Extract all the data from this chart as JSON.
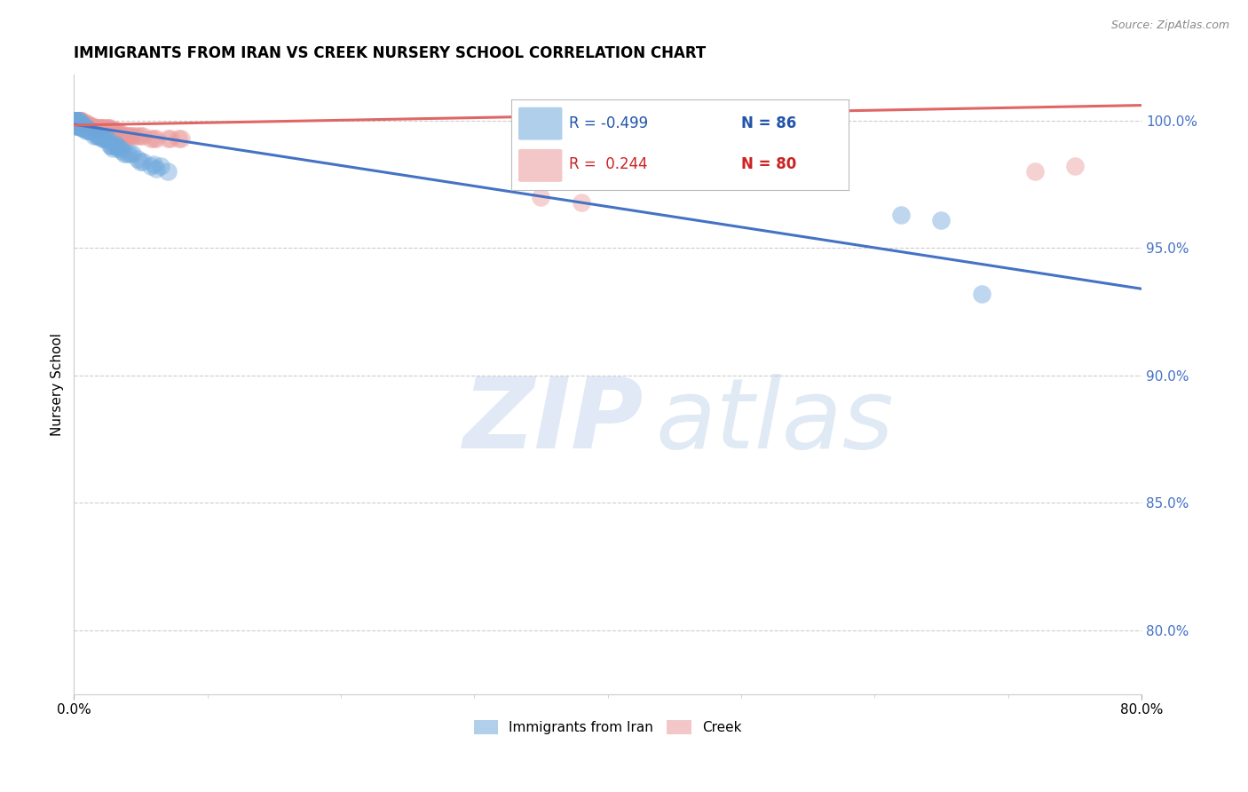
{
  "title": "IMMIGRANTS FROM IRAN VS CREEK NURSERY SCHOOL CORRELATION CHART",
  "source": "Source: ZipAtlas.com",
  "ylabel": "Nursery School",
  "y_ticks": [
    0.8,
    0.85,
    0.9,
    0.95,
    1.0
  ],
  "y_tick_labels": [
    "80.0%",
    "85.0%",
    "90.0%",
    "95.0%",
    "100.0%"
  ],
  "x_range": [
    0.0,
    0.8
  ],
  "y_range": [
    0.775,
    1.018
  ],
  "blue_R": -0.499,
  "blue_N": 86,
  "pink_R": 0.244,
  "pink_N": 80,
  "blue_color": "#6fa8dc",
  "pink_color": "#ea9999",
  "blue_line_color": "#4472c4",
  "pink_line_color": "#e06666",
  "legend_label_blue": "Immigrants from Iran",
  "legend_label_pink": "Creek",
  "blue_scatter_x": [
    0.001,
    0.002,
    0.003,
    0.001,
    0.004,
    0.005,
    0.002,
    0.003,
    0.001,
    0.002,
    0.001,
    0.004,
    0.003,
    0.005,
    0.001,
    0.002,
    0.004,
    0.003,
    0.001,
    0.002,
    0.003,
    0.004,
    0.005,
    0.001,
    0.002,
    0.003,
    0.004,
    0.006,
    0.005,
    0.003,
    0.004,
    0.002,
    0.001,
    0.008,
    0.009,
    0.007,
    0.01,
    0.005,
    0.003,
    0.004,
    0.006,
    0.002,
    0.012,
    0.01,
    0.008,
    0.007,
    0.009,
    0.006,
    0.011,
    0.015,
    0.018,
    0.016,
    0.017,
    0.019,
    0.021,
    0.02,
    0.025,
    0.022,
    0.023,
    0.024,
    0.03,
    0.028,
    0.032,
    0.027,
    0.031,
    0.035,
    0.033,
    0.029,
    0.036,
    0.04,
    0.038,
    0.042,
    0.044,
    0.05,
    0.048,
    0.052,
    0.06,
    0.058,
    0.062,
    0.065,
    0.07,
    0.62,
    0.65,
    0.68
  ],
  "blue_scatter_y": [
    0.999,
    0.999,
    0.999,
    1.0,
    0.999,
    0.999,
    1.0,
    0.999,
    1.0,
    0.999,
    1.0,
    0.999,
    1.0,
    0.999,
    1.0,
    0.999,
    0.999,
    1.0,
    1.0,
    0.999,
    0.999,
    0.999,
    0.999,
    1.0,
    1.0,
    1.0,
    0.999,
    0.999,
    0.999,
    0.998,
    0.998,
    0.998,
    0.999,
    0.997,
    0.997,
    0.997,
    0.997,
    0.998,
    0.998,
    0.998,
    0.997,
    0.998,
    0.996,
    0.996,
    0.997,
    0.997,
    0.996,
    0.997,
    0.996,
    0.994,
    0.994,
    0.995,
    0.994,
    0.994,
    0.993,
    0.994,
    0.993,
    0.993,
    0.993,
    0.993,
    0.99,
    0.99,
    0.99,
    0.99,
    0.991,
    0.989,
    0.989,
    0.989,
    0.988,
    0.987,
    0.987,
    0.987,
    0.987,
    0.984,
    0.985,
    0.984,
    0.983,
    0.982,
    0.981,
    0.982,
    0.98,
    0.963,
    0.961,
    0.932
  ],
  "pink_scatter_x": [
    0.001,
    0.003,
    0.002,
    0.004,
    0.001,
    0.005,
    0.002,
    0.003,
    0.004,
    0.002,
    0.001,
    0.003,
    0.005,
    0.004,
    0.002,
    0.003,
    0.001,
    0.004,
    0.006,
    0.005,
    0.003,
    0.004,
    0.008,
    0.007,
    0.009,
    0.01,
    0.006,
    0.005,
    0.008,
    0.007,
    0.012,
    0.014,
    0.013,
    0.011,
    0.01,
    0.015,
    0.016,
    0.017,
    0.015,
    0.02,
    0.022,
    0.018,
    0.025,
    0.019,
    0.021,
    0.024,
    0.02,
    0.03,
    0.028,
    0.032,
    0.027,
    0.029,
    0.031,
    0.026,
    0.035,
    0.034,
    0.04,
    0.042,
    0.038,
    0.045,
    0.037,
    0.043,
    0.041,
    0.05,
    0.052,
    0.048,
    0.06,
    0.058,
    0.062,
    0.07,
    0.072,
    0.078,
    0.08,
    0.35,
    0.38,
    0.72,
    0.75
  ],
  "pink_scatter_y": [
    1.0,
    1.0,
    1.0,
    1.0,
    1.0,
    1.0,
    1.0,
    1.0,
    1.0,
    1.0,
    1.0,
    1.0,
    1.0,
    1.0,
    1.0,
    1.0,
    1.0,
    1.0,
    1.0,
    1.0,
    1.0,
    1.0,
    0.999,
    0.999,
    0.999,
    0.999,
    0.999,
    0.999,
    0.999,
    0.999,
    0.998,
    0.998,
    0.998,
    0.998,
    0.998,
    0.997,
    0.997,
    0.997,
    0.997,
    0.997,
    0.997,
    0.997,
    0.997,
    0.997,
    0.997,
    0.997,
    0.997,
    0.996,
    0.996,
    0.996,
    0.997,
    0.996,
    0.996,
    0.997,
    0.995,
    0.995,
    0.994,
    0.994,
    0.994,
    0.994,
    0.994,
    0.994,
    0.994,
    0.994,
    0.994,
    0.994,
    0.993,
    0.993,
    0.993,
    0.993,
    0.993,
    0.993,
    0.993,
    0.97,
    0.968,
    0.98,
    0.982
  ],
  "blue_trendline_x": [
    0.0,
    0.8
  ],
  "blue_trendline_y": [
    0.9985,
    0.934
  ],
  "pink_trendline_x": [
    0.0,
    0.8
  ],
  "pink_trendline_y": [
    0.9982,
    1.006
  ]
}
